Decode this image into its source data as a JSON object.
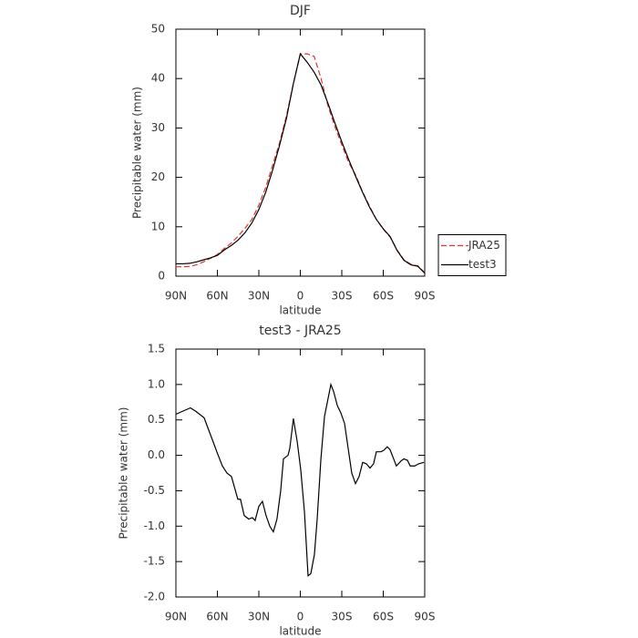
{
  "chart_data": [
    {
      "type": "line",
      "title": "DJF",
      "xlabel": "latitude",
      "ylabel": "Precipitable water (mm)",
      "x": [
        90,
        85,
        80,
        75,
        70,
        65,
        60,
        55,
        50,
        45,
        40,
        35,
        30,
        25,
        20,
        15,
        10,
        5,
        0,
        -5,
        -10,
        -15,
        -20,
        -25,
        -30,
        -35,
        -40,
        -45,
        -50,
        -55,
        -60,
        -65,
        -70,
        -75,
        -80,
        -85,
        -90
      ],
      "series": [
        {
          "name": "JRA25",
          "color": "#e8302a",
          "linestyle": "dashed",
          "values": [
            1.9,
            1.9,
            2.0,
            2.3,
            2.9,
            3.6,
            4.4,
            5.6,
            6.7,
            8.1,
            9.7,
            11.5,
            14.4,
            18,
            22.5,
            27,
            32.5,
            39,
            45,
            45,
            44.5,
            40,
            34.5,
            30.3,
            26.6,
            23,
            20.5,
            17.1,
            14.2,
            11.5,
            9.5,
            7.9,
            5.3,
            3.3,
            2.4,
            2.1,
            0.7
          ]
        },
        {
          "name": "test3",
          "color": "#000000",
          "linestyle": "solid",
          "values": [
            2.5,
            2.5,
            2.6,
            2.9,
            3.3,
            3.7,
            4.2,
            5.3,
            6.2,
            7.3,
            8.8,
            10.8,
            13.5,
            17,
            21.5,
            26.5,
            32,
            39,
            45,
            43.3,
            41.3,
            38.7,
            35,
            31,
            27.2,
            23.6,
            20.2,
            17,
            14,
            11.5,
            9.6,
            8,
            5.2,
            3.2,
            2.3,
            2,
            0.6
          ]
        }
      ],
      "xlim": [
        90,
        -90
      ],
      "xticks": [
        {
          "value": 90,
          "label": "90N"
        },
        {
          "value": 60,
          "label": "60N"
        },
        {
          "value": 30,
          "label": "30N"
        },
        0,
        {
          "value": -30,
          "label": "30S"
        },
        {
          "value": -60,
          "label": "60S"
        },
        {
          "value": -90,
          "label": "90S"
        }
      ],
      "ylim": [
        0,
        50
      ],
      "yticks": [
        0,
        10,
        20,
        30,
        40,
        50
      ],
      "legend": "right"
    },
    {
      "type": "line",
      "title": "test3 - JRA25",
      "xlabel": "latitude",
      "ylabel": "Precipitable water (mm)",
      "x": [
        90,
        85.4,
        79.5,
        75.5,
        69.6,
        61.7,
        60.4,
        56.4,
        53.1,
        49.8,
        45.2,
        43.3,
        40.6,
        37.3,
        34.7,
        32.7,
        30.0,
        27.4,
        24.8,
        22.1,
        19.5,
        16.9,
        14.2,
        12.2,
        8.9,
        7.6,
        5.0,
        2.3,
        -0.3,
        -3.0,
        -5.6,
        -7.6,
        -10.2,
        -12.2,
        -14.9,
        -17.5,
        -22.1,
        -24.1,
        -26.8,
        -29.3,
        -32.0,
        -34.6,
        -37.2,
        -39.9,
        -42.5,
        -45.1,
        -47.8,
        -50.4,
        -53.0,
        -55.0,
        -58.3,
        -60.3,
        -62.9,
        -64.9,
        -67.5,
        -69.5,
        -72.8,
        -74.9,
        -77.5,
        -79.5,
        -82.8,
        -85.5,
        -89.4
      ],
      "values": [
        0.58,
        0.62,
        0.67,
        0.62,
        0.53,
        0.12,
        0.05,
        -0.15,
        -0.25,
        -0.3,
        -0.62,
        -0.62,
        -0.85,
        -0.9,
        -0.88,
        -0.92,
        -0.72,
        -0.65,
        -0.85,
        -1.0,
        -1.08,
        -0.9,
        -0.5,
        -0.05,
        0.0,
        0.1,
        0.52,
        0.2,
        -0.2,
        -0.8,
        -1.7,
        -1.67,
        -1.4,
        -0.9,
        -0.05,
        0.55,
        1.0,
        0.9,
        0.7,
        0.6,
        0.45,
        0.1,
        -0.25,
        -0.4,
        -0.3,
        -0.1,
        -0.12,
        -0.18,
        -0.12,
        0.05,
        0.05,
        0.07,
        0.12,
        0.08,
        -0.05,
        -0.15,
        -0.08,
        -0.05,
        -0.07,
        -0.15,
        -0.15,
        -0.12,
        -0.1
      ],
      "color": "#000000",
      "xlim": [
        90,
        -90
      ],
      "xticks": [
        {
          "value": 90,
          "label": "90N"
        },
        {
          "value": 60,
          "label": "60N"
        },
        {
          "value": 30,
          "label": "30N"
        },
        0,
        {
          "value": -30,
          "label": "30S"
        },
        {
          "value": -60,
          "label": "60S"
        },
        {
          "value": -90,
          "label": "90S"
        }
      ],
      "ylim": [
        -2,
        1.5
      ],
      "yticks": [
        1.5,
        {
          "value": 1,
          "label": "1.0"
        },
        0.5,
        {
          "value": 0,
          "label": "0.0"
        },
        -0.5,
        {
          "value": -1,
          "label": "-1.0"
        },
        -1.5,
        {
          "value": -2,
          "label": "-2.0"
        }
      ]
    }
  ]
}
